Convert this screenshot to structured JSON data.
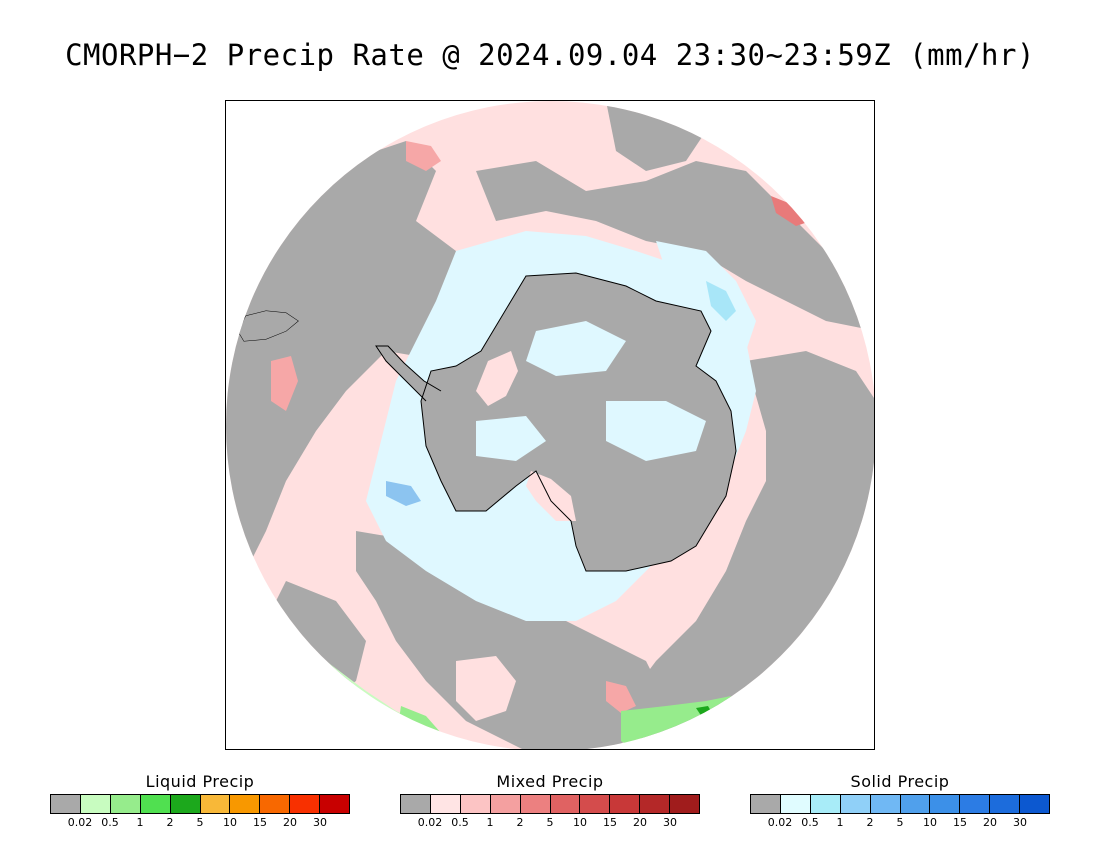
{
  "title": "CMORPH−2 Precip Rate @ 2024.09.04 23:30~23:59Z (mm/hr)",
  "map": {
    "projection": "south-polar-stereographic",
    "hemisphere": "southern",
    "colors": {
      "no_precip": "#a9a9a9",
      "mixed_light": "#ffe0e0",
      "mixed_moderate": "#f6a7a7",
      "mixed_heavy": "#e87a7a",
      "solid_light": "#dff8ff",
      "solid_moderate": "#a8e6f8",
      "solid_heavy": "#8cc4f0",
      "liquid_light": "#c8fcc0",
      "liquid_moderate": "#96ec8c",
      "liquid_heavy": "#1ca81c",
      "coastline": "#000000"
    }
  },
  "legends": [
    {
      "title": "Liquid Precip",
      "colors": [
        "#a9a9a9",
        "#c8fcc0",
        "#96ec8c",
        "#50e050",
        "#1ca81c",
        "#f8b838",
        "#f89800",
        "#f86800",
        "#f83000",
        "#c80000"
      ],
      "ticks": [
        "0.02",
        "0.5",
        "1",
        "2",
        "5",
        "10",
        "15",
        "20",
        "30"
      ]
    },
    {
      "title": "Mixed Precip",
      "colors": [
        "#a9a9a9",
        "#ffe4e4",
        "#fcc4c4",
        "#f4a0a0",
        "#ec8080",
        "#e06262",
        "#d44c4c",
        "#c83838",
        "#b42828",
        "#a01c1c"
      ],
      "ticks": [
        "0.02",
        "0.5",
        "1",
        "2",
        "5",
        "10",
        "15",
        "20",
        "30"
      ]
    },
    {
      "title": "Solid Precip",
      "colors": [
        "#a9a9a9",
        "#e0fcff",
        "#a8ecf8",
        "#90d0f8",
        "#70b8f4",
        "#50a0ec",
        "#3c90e8",
        "#2c7ce4",
        "#1c6cdc",
        "#0c58d0"
      ],
      "ticks": [
        "0.02",
        "0.5",
        "1",
        "2",
        "5",
        "10",
        "15",
        "20",
        "30"
      ]
    }
  ]
}
